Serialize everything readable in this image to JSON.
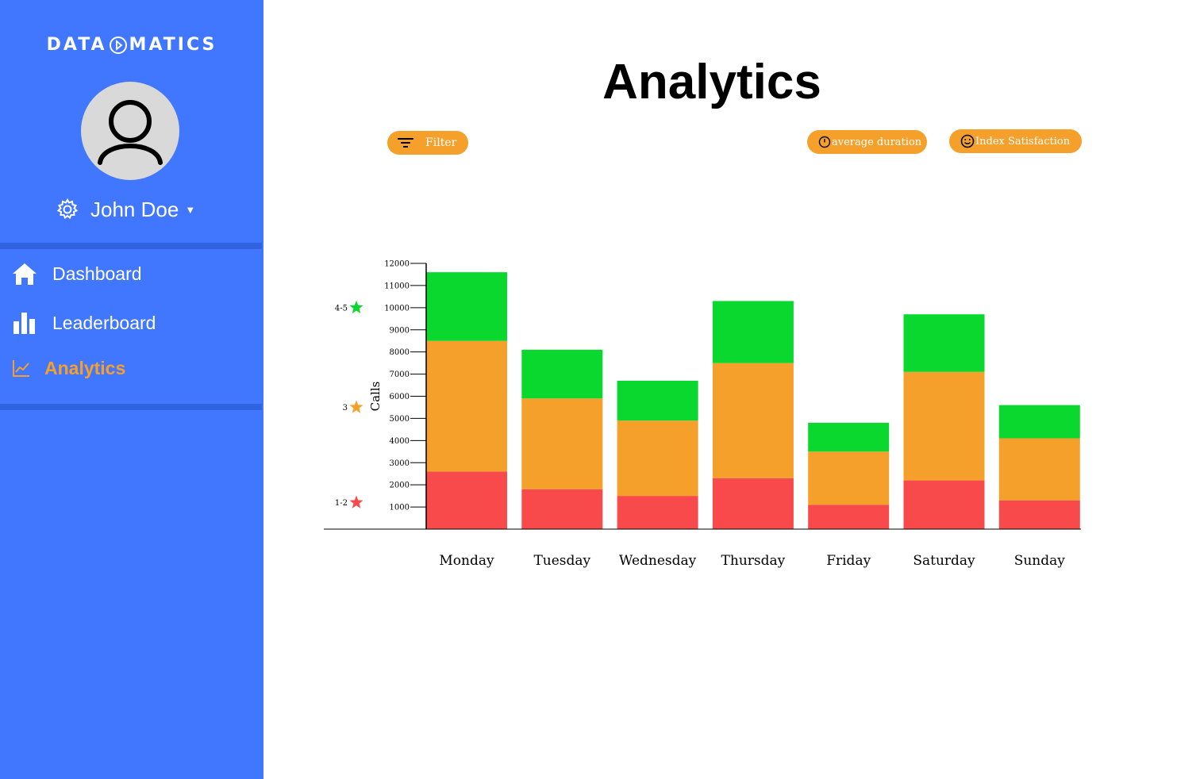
{
  "sidebar": {
    "logo_left": "DATA",
    "logo_right": "MATICS",
    "user_name": "John Doe",
    "items": [
      {
        "label": "Dashboard",
        "icon": "home-icon",
        "active": false
      },
      {
        "label": "Leaderboard",
        "icon": "bar-chart-icon",
        "active": false
      },
      {
        "label": "Analytics",
        "icon": "line-chart-icon",
        "active": true
      }
    ]
  },
  "main": {
    "title": "Analytics",
    "filter_label": "Filter",
    "average_duration_label": "average duration",
    "index_satisfaction_label": "Index Satisfaction"
  },
  "colors": {
    "sidebar": "#4177ff",
    "accent": "#f5a02a",
    "green": "#0ad82f",
    "orange": "#f5a02a",
    "red": "#f84a4a"
  },
  "chart_data": {
    "type": "bar",
    "stacked": true,
    "categories": [
      "Monday",
      "Tuesday",
      "Wednesday",
      "Thursday",
      "Friday",
      "Saturday",
      "Sunday"
    ],
    "series": [
      {
        "name": "1-2",
        "color": "#f84a4a",
        "values": [
          2600,
          1800,
          1500,
          2300,
          1100,
          2200,
          1300
        ]
      },
      {
        "name": "3",
        "color": "#f5a02a",
        "values": [
          5900,
          4100,
          3400,
          5200,
          2400,
          4900,
          2800
        ]
      },
      {
        "name": "4-5",
        "color": "#0ad82f",
        "values": [
          3100,
          2200,
          1800,
          2800,
          1300,
          2600,
          1500
        ]
      }
    ],
    "ylabel": "Calls",
    "yticks": [
      1000,
      2000,
      3000,
      4000,
      5000,
      6000,
      7000,
      8000,
      9000,
      10000,
      11000,
      12000
    ],
    "ylim": [
      0,
      12000
    ],
    "legend": [
      {
        "label": "4-5",
        "color": "#0ad82f",
        "value": 10000
      },
      {
        "label": "3",
        "color": "#f5a02a",
        "value": 5500
      },
      {
        "label": "1-2",
        "color": "#f84a4a",
        "value": 1200
      }
    ]
  }
}
